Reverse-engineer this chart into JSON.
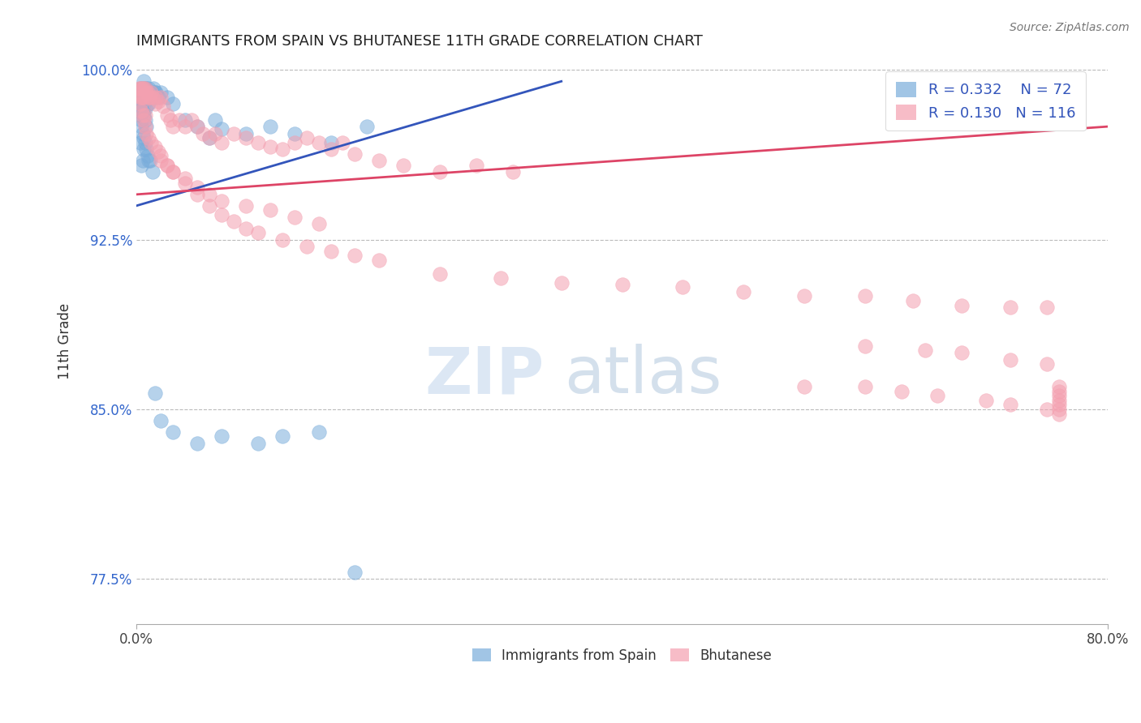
{
  "title": "IMMIGRANTS FROM SPAIN VS BHUTANESE 11TH GRADE CORRELATION CHART",
  "source_text": "Source: ZipAtlas.com",
  "ylabel": "11th Grade",
  "x_min": 0.0,
  "x_max": 0.8,
  "y_min": 0.755,
  "y_max": 1.005,
  "x_ticks": [
    0.0,
    0.8
  ],
  "x_tick_labels": [
    "0.0%",
    "80.0%"
  ],
  "y_ticks": [
    1.0,
    0.925,
    0.85,
    0.775
  ],
  "y_tick_labels": [
    "100.0%",
    "92.5%",
    "85.0%",
    "77.5%"
  ],
  "color_spain": "#7aaddb",
  "color_bhutanese": "#f4a0b0",
  "trendline_spain": "#3355bb",
  "trendline_bhutanese": "#dd4466",
  "R_spain": 0.332,
  "N_spain": 72,
  "R_bhutanese": 0.13,
  "N_bhutanese": 116,
  "legend_labels": [
    "Immigrants from Spain",
    "Bhutanese"
  ],
  "watermark_zip": "ZIP",
  "watermark_atlas": "atlas",
  "background_color": "#ffffff",
  "grid_color": "#bbbbbb",
  "spain_trendline_x": [
    0.0,
    0.35
  ],
  "spain_trendline_y": [
    0.94,
    0.995
  ],
  "bhutan_trendline_x": [
    0.0,
    0.8
  ],
  "bhutan_trendline_y": [
    0.945,
    0.975
  ],
  "spain_x": [
    0.002,
    0.002,
    0.003,
    0.003,
    0.004,
    0.004,
    0.005,
    0.005,
    0.005,
    0.006,
    0.006,
    0.006,
    0.007,
    0.007,
    0.007,
    0.008,
    0.008,
    0.009,
    0.009,
    0.01,
    0.01,
    0.011,
    0.012,
    0.013,
    0.014,
    0.015,
    0.016,
    0.018,
    0.02,
    0.025,
    0.03,
    0.04,
    0.05,
    0.06,
    0.065,
    0.07,
    0.09,
    0.11,
    0.13,
    0.16,
    0.19,
    0.002,
    0.003,
    0.004,
    0.003,
    0.005,
    0.006,
    0.007,
    0.008,
    0.01,
    0.005,
    0.004,
    0.006,
    0.003,
    0.004,
    0.005,
    0.006,
    0.007,
    0.008,
    0.009,
    0.01,
    0.011,
    0.013,
    0.015,
    0.02,
    0.03,
    0.05,
    0.07,
    0.1,
    0.12,
    0.15,
    0.18
  ],
  "spain_y": [
    0.99,
    0.985,
    0.992,
    0.988,
    0.99,
    0.985,
    0.992,
    0.988,
    0.983,
    0.995,
    0.99,
    0.985,
    0.992,
    0.988,
    0.983,
    0.992,
    0.988,
    0.99,
    0.985,
    0.992,
    0.988,
    0.99,
    0.988,
    0.99,
    0.992,
    0.99,
    0.99,
    0.988,
    0.99,
    0.988,
    0.985,
    0.978,
    0.975,
    0.97,
    0.978,
    0.974,
    0.972,
    0.975,
    0.972,
    0.968,
    0.975,
    0.982,
    0.98,
    0.978,
    0.985,
    0.982,
    0.98,
    0.978,
    0.975,
    0.985,
    0.96,
    0.958,
    0.965,
    0.968,
    0.975,
    0.972,
    0.97,
    0.968,
    0.965,
    0.962,
    0.96,
    0.96,
    0.955,
    0.857,
    0.845,
    0.84,
    0.835,
    0.838,
    0.835,
    0.838,
    0.84,
    0.778
  ],
  "bhutan_x": [
    0.002,
    0.003,
    0.003,
    0.004,
    0.004,
    0.005,
    0.005,
    0.006,
    0.006,
    0.007,
    0.007,
    0.008,
    0.009,
    0.01,
    0.011,
    0.012,
    0.013,
    0.015,
    0.016,
    0.018,
    0.02,
    0.022,
    0.025,
    0.028,
    0.03,
    0.035,
    0.04,
    0.045,
    0.05,
    0.055,
    0.06,
    0.065,
    0.07,
    0.08,
    0.09,
    0.1,
    0.11,
    0.12,
    0.13,
    0.14,
    0.15,
    0.16,
    0.17,
    0.18,
    0.2,
    0.22,
    0.25,
    0.28,
    0.31,
    0.02,
    0.025,
    0.03,
    0.04,
    0.05,
    0.06,
    0.07,
    0.09,
    0.11,
    0.13,
    0.15,
    0.003,
    0.004,
    0.005,
    0.006,
    0.007,
    0.008,
    0.01,
    0.012,
    0.015,
    0.018,
    0.02,
    0.025,
    0.03,
    0.04,
    0.05,
    0.06,
    0.07,
    0.08,
    0.09,
    0.1,
    0.12,
    0.14,
    0.16,
    0.18,
    0.2,
    0.25,
    0.3,
    0.35,
    0.4,
    0.45,
    0.5,
    0.55,
    0.6,
    0.64,
    0.68,
    0.72,
    0.75,
    0.6,
    0.65,
    0.68,
    0.72,
    0.75,
    0.55,
    0.6,
    0.63,
    0.66,
    0.7,
    0.72,
    0.75,
    0.76,
    0.76,
    0.76,
    0.76,
    0.76,
    0.76,
    0.76
  ],
  "bhutan_y": [
    0.992,
    0.992,
    0.988,
    0.992,
    0.988,
    0.992,
    0.988,
    0.992,
    0.988,
    0.992,
    0.98,
    0.99,
    0.99,
    0.988,
    0.988,
    0.99,
    0.988,
    0.985,
    0.988,
    0.986,
    0.988,
    0.984,
    0.98,
    0.978,
    0.975,
    0.978,
    0.975,
    0.978,
    0.975,
    0.972,
    0.97,
    0.972,
    0.968,
    0.972,
    0.97,
    0.968,
    0.966,
    0.965,
    0.968,
    0.97,
    0.968,
    0.965,
    0.968,
    0.963,
    0.96,
    0.958,
    0.955,
    0.958,
    0.955,
    0.96,
    0.958,
    0.955,
    0.952,
    0.948,
    0.945,
    0.942,
    0.94,
    0.938,
    0.935,
    0.932,
    0.985,
    0.982,
    0.98,
    0.978,
    0.975,
    0.972,
    0.97,
    0.968,
    0.966,
    0.964,
    0.962,
    0.958,
    0.955,
    0.95,
    0.945,
    0.94,
    0.936,
    0.933,
    0.93,
    0.928,
    0.925,
    0.922,
    0.92,
    0.918,
    0.916,
    0.91,
    0.908,
    0.906,
    0.905,
    0.904,
    0.902,
    0.9,
    0.9,
    0.898,
    0.896,
    0.895,
    0.895,
    0.878,
    0.876,
    0.875,
    0.872,
    0.87,
    0.86,
    0.86,
    0.858,
    0.856,
    0.854,
    0.852,
    0.85,
    0.848,
    0.85,
    0.852,
    0.854,
    0.856,
    0.858,
    0.86
  ]
}
